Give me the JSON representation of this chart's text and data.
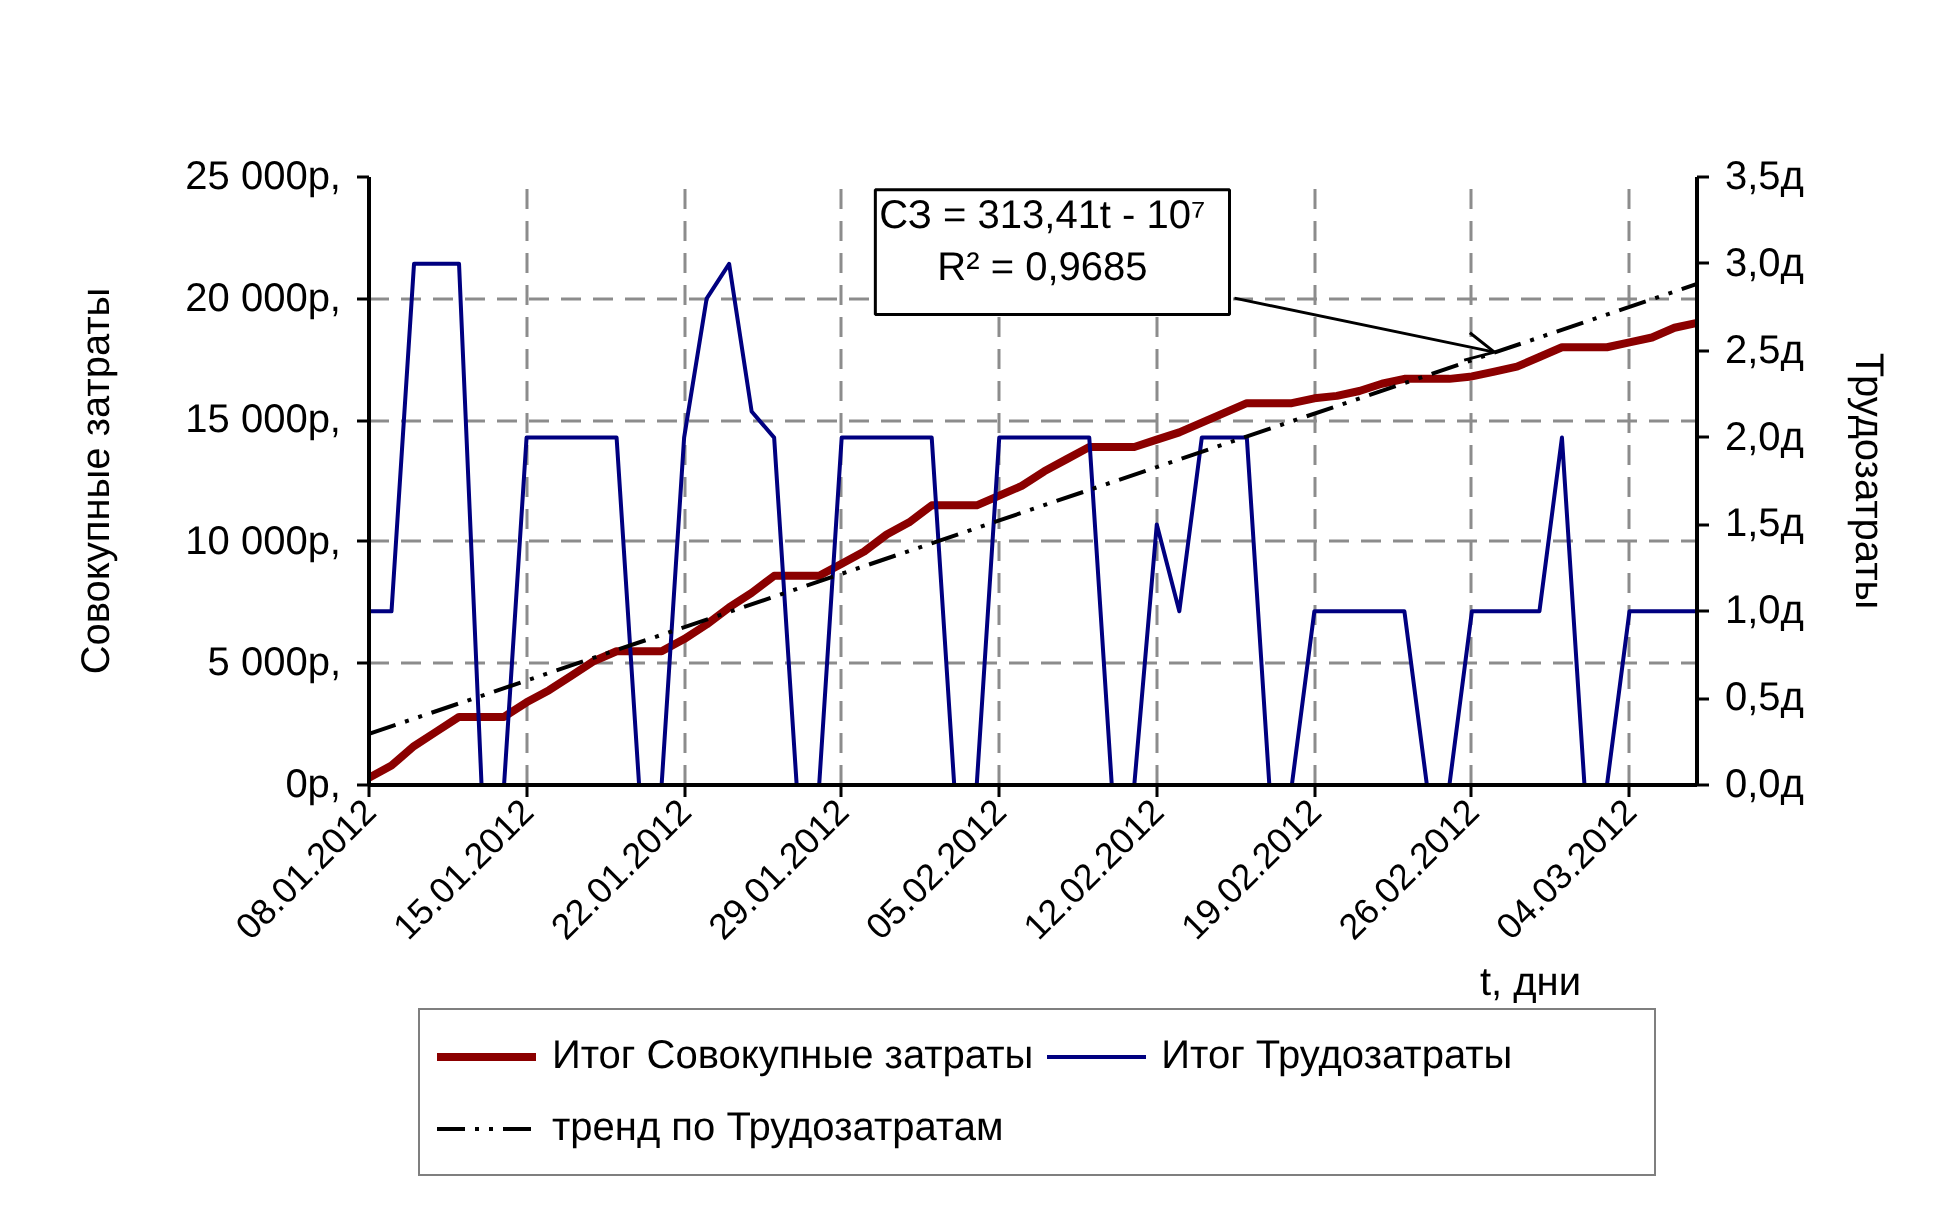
{
  "chart_data": {
    "type": "line",
    "x": [
      "2012-01-08",
      "2012-01-09",
      "2012-01-10",
      "2012-01-11",
      "2012-01-12",
      "2012-01-13",
      "2012-01-14",
      "2012-01-15",
      "2012-01-16",
      "2012-01-17",
      "2012-01-18",
      "2012-01-19",
      "2012-01-20",
      "2012-01-21",
      "2012-01-22",
      "2012-01-23",
      "2012-01-24",
      "2012-01-25",
      "2012-01-26",
      "2012-01-27",
      "2012-01-28",
      "2012-01-29",
      "2012-01-30",
      "2012-01-31",
      "2012-02-01",
      "2012-02-02",
      "2012-02-03",
      "2012-02-04",
      "2012-02-05",
      "2012-02-06",
      "2012-02-07",
      "2012-02-08",
      "2012-02-09",
      "2012-02-10",
      "2012-02-11",
      "2012-02-12",
      "2012-02-13",
      "2012-02-14",
      "2012-02-15",
      "2012-02-16",
      "2012-02-17",
      "2012-02-18",
      "2012-02-19",
      "2012-02-20",
      "2012-02-21",
      "2012-02-22",
      "2012-02-23",
      "2012-02-24",
      "2012-02-25",
      "2012-02-26",
      "2012-02-27",
      "2012-02-28",
      "2012-02-29",
      "2012-03-01",
      "2012-03-02",
      "2012-03-03",
      "2012-03-04",
      "2012-03-05",
      "2012-03-06",
      "2012-03-07"
    ],
    "series": [
      {
        "name": "Итог Совокупные затраты",
        "color": "#8b0000",
        "values": [
          300,
          800,
          1600,
          2200,
          2800,
          2800,
          2800,
          3400,
          3900,
          4500,
          5100,
          5500,
          5500,
          5500,
          6000,
          6600,
          7300,
          7900,
          8600,
          8600,
          8600,
          9100,
          9600,
          10300,
          10800,
          11500,
          11500,
          11500,
          11900,
          12300,
          12900,
          13400,
          13900,
          13900,
          13900,
          14200,
          14500,
          14900,
          15300,
          15700,
          15700,
          15700,
          15900,
          16000,
          16200,
          16500,
          16700,
          16700,
          16700,
          16800,
          17000,
          17200,
          17600,
          18000,
          18000,
          18000,
          18200,
          18400,
          18800,
          19000
        ]
      },
      {
        "name": "Итог Трудозатраты",
        "color": "#000080",
        "axis": "y2",
        "values": [
          1,
          1,
          3,
          3,
          3,
          0,
          0,
          2,
          2,
          2,
          2,
          2,
          0,
          0,
          2,
          2.8,
          3,
          2.15,
          2,
          0,
          0,
          2,
          2,
          2,
          2,
          2,
          0,
          0,
          2,
          2,
          2,
          2,
          2,
          0,
          0,
          1.5,
          1,
          2,
          2,
          2,
          0,
          0,
          1,
          1,
          1,
          1,
          1,
          0,
          0,
          1,
          1,
          1,
          1,
          2,
          0,
          0,
          1,
          1,
          1,
          1
        ]
      },
      {
        "name": "тренд по Трудозатратам",
        "type": "line",
        "color": "#000000",
        "line_style": "dashdot",
        "x": [
          "2012-01-08",
          "2012-03-07"
        ],
        "values": [
          2100,
          20600
        ]
      }
    ],
    "xlabel": "t, дни",
    "ylabel": "Совокупные затраты",
    "y2label": "Трудозатраты",
    "xlim": [
      "2012-01-08",
      "2012-03-07"
    ],
    "xticks": [
      {
        "value": "2012-01-08",
        "label": "08.01.2012"
      },
      {
        "value": "2012-01-15",
        "label": "15.01.2012"
      },
      {
        "value": "2012-01-22",
        "label": "22.01.2012"
      },
      {
        "value": "2012-01-29",
        "label": "29.01.2012"
      },
      {
        "value": "2012-02-05",
        "label": "05.02.2012"
      },
      {
        "value": "2012-02-12",
        "label": "12.02.2012"
      },
      {
        "value": "2012-02-19",
        "label": "19.02.2012"
      },
      {
        "value": "2012-02-26",
        "label": "26.02.2012"
      },
      {
        "value": "2012-03-04",
        "label": "04.03.2012"
      }
    ],
    "ylim": [
      0,
      25000
    ],
    "yticks": [
      {
        "value": 0,
        "label": "0р,"
      },
      {
        "value": 5000,
        "label": "5 000р,"
      },
      {
        "value": 10000,
        "label": "10 000р,"
      },
      {
        "value": 15000,
        "label": "15 000р,"
      },
      {
        "value": 20000,
        "label": "20 000р,"
      },
      {
        "value": 25000,
        "label": "25 000р,"
      }
    ],
    "y2lim": [
      0,
      3.5
    ],
    "y2ticks": [
      {
        "value": 0,
        "label": "0,0д"
      },
      {
        "value": 0.5,
        "label": "0,5д"
      },
      {
        "value": 1,
        "label": "1,0д"
      },
      {
        "value": 1.5,
        "label": "1,5д"
      },
      {
        "value": 2,
        "label": "2,0д"
      },
      {
        "value": 2.5,
        "label": "2,5д"
      },
      {
        "value": 3,
        "label": "3,0д"
      },
      {
        "value": 3.5,
        "label": "3,5д"
      }
    ],
    "annotations": [
      {
        "text": "СЗ = 313,41t - 10⁷\nR² = 0,9685",
        "x": "2012-02-27",
        "y": 17800
      }
    ],
    "grid": true,
    "legend": "bottom"
  }
}
